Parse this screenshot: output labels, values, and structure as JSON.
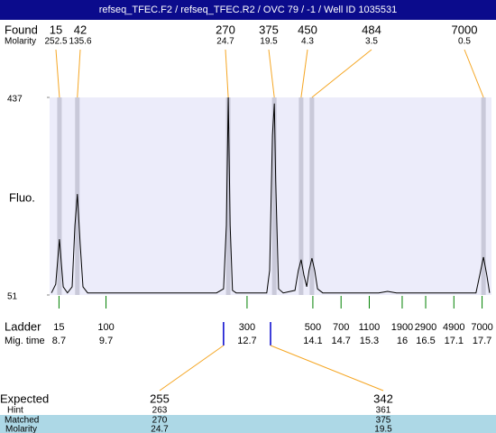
{
  "chart_data": {
    "type": "electropherogram",
    "title": "refseq_TFEC.F2 / refseq_TFEC.R2 / OVC 79 / -1 / Well ID 1035531",
    "ylabel": "Fluo.",
    "xlim": [
      8.5,
      17.9
    ],
    "ylim": [
      51,
      437
    ],
    "yticks": [
      51,
      437
    ],
    "found": {
      "label": "Found",
      "molarity_label": "Molarity",
      "sizes": [
        15,
        42,
        270,
        375,
        450,
        484,
        7000
      ],
      "molarity": [
        252.5,
        135.6,
        24.7,
        19.5,
        4.3,
        3.5,
        0.5
      ],
      "times": [
        8.71,
        9.09,
        12.3,
        13.28,
        13.85,
        14.08,
        17.73
      ]
    },
    "ladder": {
      "label": "Ladder",
      "time_label": "Mig. time",
      "sizes": [
        15,
        100,
        300,
        500,
        700,
        1100,
        1900,
        2900,
        4900,
        7000
      ],
      "times": [
        8.7,
        9.7,
        12.7,
        14.1,
        14.7,
        15.3,
        16,
        16.5,
        17.1,
        17.7
      ],
      "color": "#008000"
    },
    "expected": {
      "label": "Expected",
      "hint_label": "Hint",
      "matched_label": "Matched",
      "molarity_label": "Molarity",
      "sizes": [
        255,
        342
      ],
      "hint": [
        263,
        361
      ],
      "matched": [
        270,
        375
      ],
      "molarity": [
        24.7,
        19.5
      ],
      "times": [
        12.2,
        13.2
      ],
      "color": "#0000cd"
    },
    "trace": {
      "color": "#000000",
      "x": [
        8.54,
        8.63,
        8.71,
        8.79,
        8.88,
        8.98,
        9.04,
        9.09,
        9.15,
        9.21,
        9.31,
        10.32,
        12.05,
        12.2,
        12.26,
        12.3,
        12.34,
        12.39,
        12.47,
        13.12,
        13.18,
        13.24,
        13.28,
        13.31,
        13.37,
        13.47,
        13.72,
        13.79,
        13.85,
        13.91,
        13.97,
        14.02,
        14.08,
        14.14,
        14.2,
        14.31,
        15.5,
        15.69,
        15.88,
        17.57,
        17.65,
        17.73,
        17.8,
        17.86
      ],
      "y": [
        55,
        72,
        160,
        67,
        55,
        67,
        187,
        248,
        151,
        67,
        55,
        55,
        55,
        63,
        187,
        437,
        187,
        60,
        55,
        55,
        99,
        363,
        425,
        275,
        63,
        55,
        60,
        99,
        120,
        90,
        67,
        99,
        123,
        99,
        63,
        55,
        55,
        58,
        55,
        55,
        90,
        125,
        90,
        55
      ]
    }
  }
}
